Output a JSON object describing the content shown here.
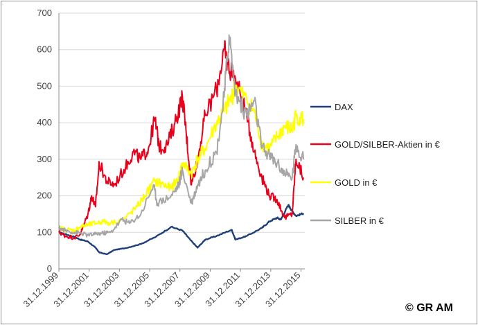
{
  "chart_data": {
    "type": "line",
    "title": "",
    "xlabel": "",
    "ylabel": "",
    "ylim": [
      0,
      700
    ],
    "yticks": [
      0,
      100,
      200,
      300,
      400,
      500,
      600,
      700
    ],
    "xlim": [
      "1999-12-31",
      "2016-04-01"
    ],
    "xticks": [
      "31.12.1999",
      "31.12.2001",
      "31.12.2003",
      "31.12.2005",
      "31.12.2007",
      "31.12.2009",
      "31.12.2011",
      "31.12.2013",
      "31.12.2015"
    ],
    "grid": true,
    "legend_position": "right",
    "series": [
      {
        "name": "DAX",
        "color": "#1f3f7a",
        "x": [
          "2000-01",
          "2000-06",
          "2001-01",
          "2001-06",
          "2001-12",
          "2002-06",
          "2002-09",
          "2003-03",
          "2003-09",
          "2004-06",
          "2005-06",
          "2006-06",
          "2007-06",
          "2008-03",
          "2008-09",
          "2009-03",
          "2009-09",
          "2010-06",
          "2011-06",
          "2011-09",
          "2012-06",
          "2013-06",
          "2013-12",
          "2014-06",
          "2014-09",
          "2015-03",
          "2015-06",
          "2015-09",
          "2016-03"
        ],
        "values": [
          100,
          95,
          88,
          80,
          75,
          58,
          45,
          40,
          52,
          57,
          68,
          88,
          115,
          105,
          80,
          58,
          80,
          90,
          107,
          80,
          90,
          112,
          130,
          140,
          135,
          175,
          158,
          145,
          152
        ]
      },
      {
        "name": "GOLD/SILBER-Aktien in €",
        "color": "#e8001c",
        "x": [
          "2000-01",
          "2000-06",
          "2001-01",
          "2001-06",
          "2001-12",
          "2002-03",
          "2002-06",
          "2002-09",
          "2003-03",
          "2003-09",
          "2004-06",
          "2004-12",
          "2005-06",
          "2005-12",
          "2006-05",
          "2006-09",
          "2007-03",
          "2007-09",
          "2008-03",
          "2008-06",
          "2008-10",
          "2009-03",
          "2009-09",
          "2010-06",
          "2010-12",
          "2011-03",
          "2011-09",
          "2012-06",
          "2012-12",
          "2013-06",
          "2013-12",
          "2014-06",
          "2014-12",
          "2015-06",
          "2015-09",
          "2016-03"
        ],
        "values": [
          100,
          90,
          85,
          95,
          150,
          200,
          170,
          290,
          240,
          230,
          280,
          320,
          300,
          330,
          410,
          330,
          340,
          400,
          470,
          370,
          230,
          300,
          420,
          490,
          600,
          560,
          520,
          420,
          320,
          250,
          200,
          190,
          140,
          150,
          300,
          250
        ]
      },
      {
        "name": "GOLD in €",
        "color": "#ffff00",
        "x": [
          "2000-01",
          "2000-06",
          "2001-01",
          "2001-06",
          "2001-12",
          "2002-06",
          "2002-12",
          "2003-06",
          "2004-06",
          "2005-03",
          "2005-09",
          "2006-05",
          "2006-12",
          "2007-06",
          "2007-12",
          "2008-03",
          "2008-10",
          "2009-03",
          "2009-09",
          "2010-06",
          "2010-12",
          "2011-06",
          "2011-09",
          "2012-06",
          "2012-12",
          "2013-06",
          "2013-12",
          "2014-06",
          "2014-12",
          "2015-06",
          "2015-09",
          "2016-03"
        ],
        "values": [
          112,
          108,
          105,
          115,
          120,
          125,
          130,
          125,
          140,
          170,
          200,
          240,
          230,
          220,
          250,
          290,
          260,
          300,
          330,
          400,
          430,
          470,
          500,
          460,
          430,
          340,
          330,
          360,
          390,
          380,
          420,
          410
        ]
      },
      {
        "name": "SILBER in €",
        "color": "#a6a6a6",
        "x": [
          "2000-01",
          "2000-06",
          "2001-01",
          "2001-06",
          "2001-12",
          "2002-06",
          "2002-12",
          "2003-06",
          "2004-03",
          "2004-09",
          "2005-06",
          "2006-04",
          "2006-07",
          "2007-06",
          "2007-12",
          "2008-03",
          "2008-10",
          "2009-03",
          "2009-09",
          "2010-06",
          "2010-12",
          "2011-04",
          "2011-09",
          "2012-06",
          "2012-12",
          "2013-06",
          "2013-12",
          "2014-06",
          "2014-12",
          "2015-06",
          "2015-09",
          "2016-03"
        ],
        "values": [
          112,
          105,
          100,
          98,
          92,
          95,
          98,
          100,
          135,
          125,
          150,
          230,
          180,
          200,
          230,
          270,
          180,
          230,
          270,
          320,
          470,
          640,
          480,
          420,
          460,
          330,
          310,
          290,
          260,
          250,
          340,
          300
        ]
      }
    ]
  },
  "copyright": "© GR AM"
}
